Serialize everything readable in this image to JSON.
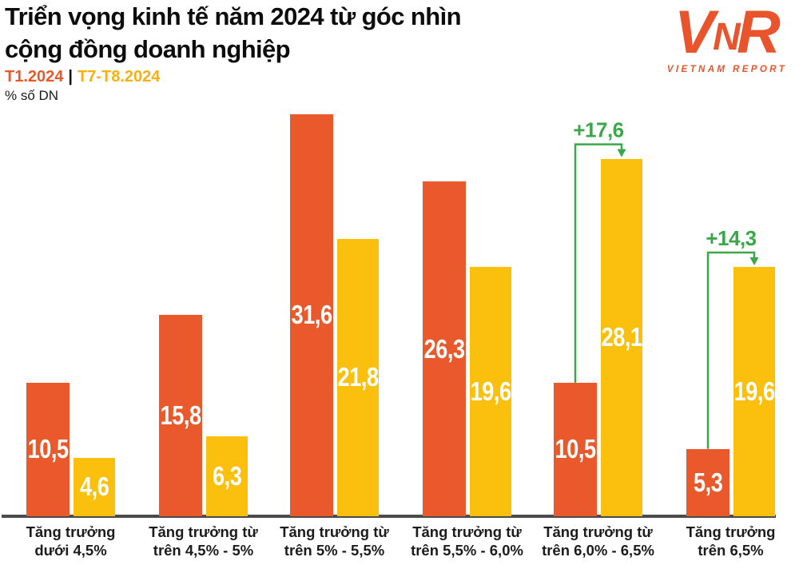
{
  "header": {
    "title_line1": "Triển vọng kinh tế năm 2024 từ góc nhìn",
    "title_line2": "cộng đồng doanh nghiệp",
    "unit_label": "% số DN"
  },
  "legend": {
    "series1_label": "T1.2024",
    "separator": "|",
    "series2_label": "T7-T8.2024"
  },
  "logo": {
    "letters": "VNR",
    "wordmark": "VIETNAM REPORT"
  },
  "colors": {
    "series1_orange": "#E9592B",
    "series2_yellow": "#FBC00D",
    "legend_series2_text": "#F7B011",
    "annotation_green": "#3CA64A",
    "axis_gray": "#4B4B4B",
    "text_dark": "#111111",
    "bar_value_text": "#FFFFFF",
    "logo_orange": "#E8542B"
  },
  "chart_data": {
    "type": "bar",
    "title": "Triển vọng kinh tế năm 2024 từ góc nhìn cộng đồng doanh nghiệp",
    "xlabel": "",
    "ylabel": "% số DN",
    "ylim": [
      0,
      33
    ],
    "grid": false,
    "legend_position": "top-left",
    "categories": [
      [
        "Tăng trưởng",
        "dưới 4,5%"
      ],
      [
        "Tăng trưởng từ",
        "trên 4,5% - 5%"
      ],
      [
        "Tăng trưởng từ",
        "trên 5% - 5,5%"
      ],
      [
        "Tăng trưởng từ",
        "trên 5,5% - 6,0%"
      ],
      [
        "Tăng trưởng từ",
        "trên 6,0% - 6,5%"
      ],
      [
        "Tăng trưởng",
        "trên 6,5%"
      ]
    ],
    "series": [
      {
        "name": "T1.2024",
        "color": "#E9592B",
        "values": [
          10.5,
          15.8,
          31.6,
          26.3,
          10.5,
          5.3
        ],
        "labels": [
          "10,5",
          "15,8",
          "31,6",
          "26,3",
          "10,5",
          "5,3"
        ]
      },
      {
        "name": "T7-T8.2024",
        "color": "#FBC00D",
        "values": [
          4.6,
          6.3,
          21.8,
          19.6,
          28.1,
          19.6
        ],
        "labels": [
          "4,6",
          "6,3",
          "21,8",
          "19,6",
          "28,1",
          "19,6"
        ]
      }
    ],
    "annotations": [
      {
        "category_index": 4,
        "label": "+17,6",
        "delta": 17.6
      },
      {
        "category_index": 5,
        "label": "+14,3",
        "delta": 14.3
      }
    ]
  }
}
